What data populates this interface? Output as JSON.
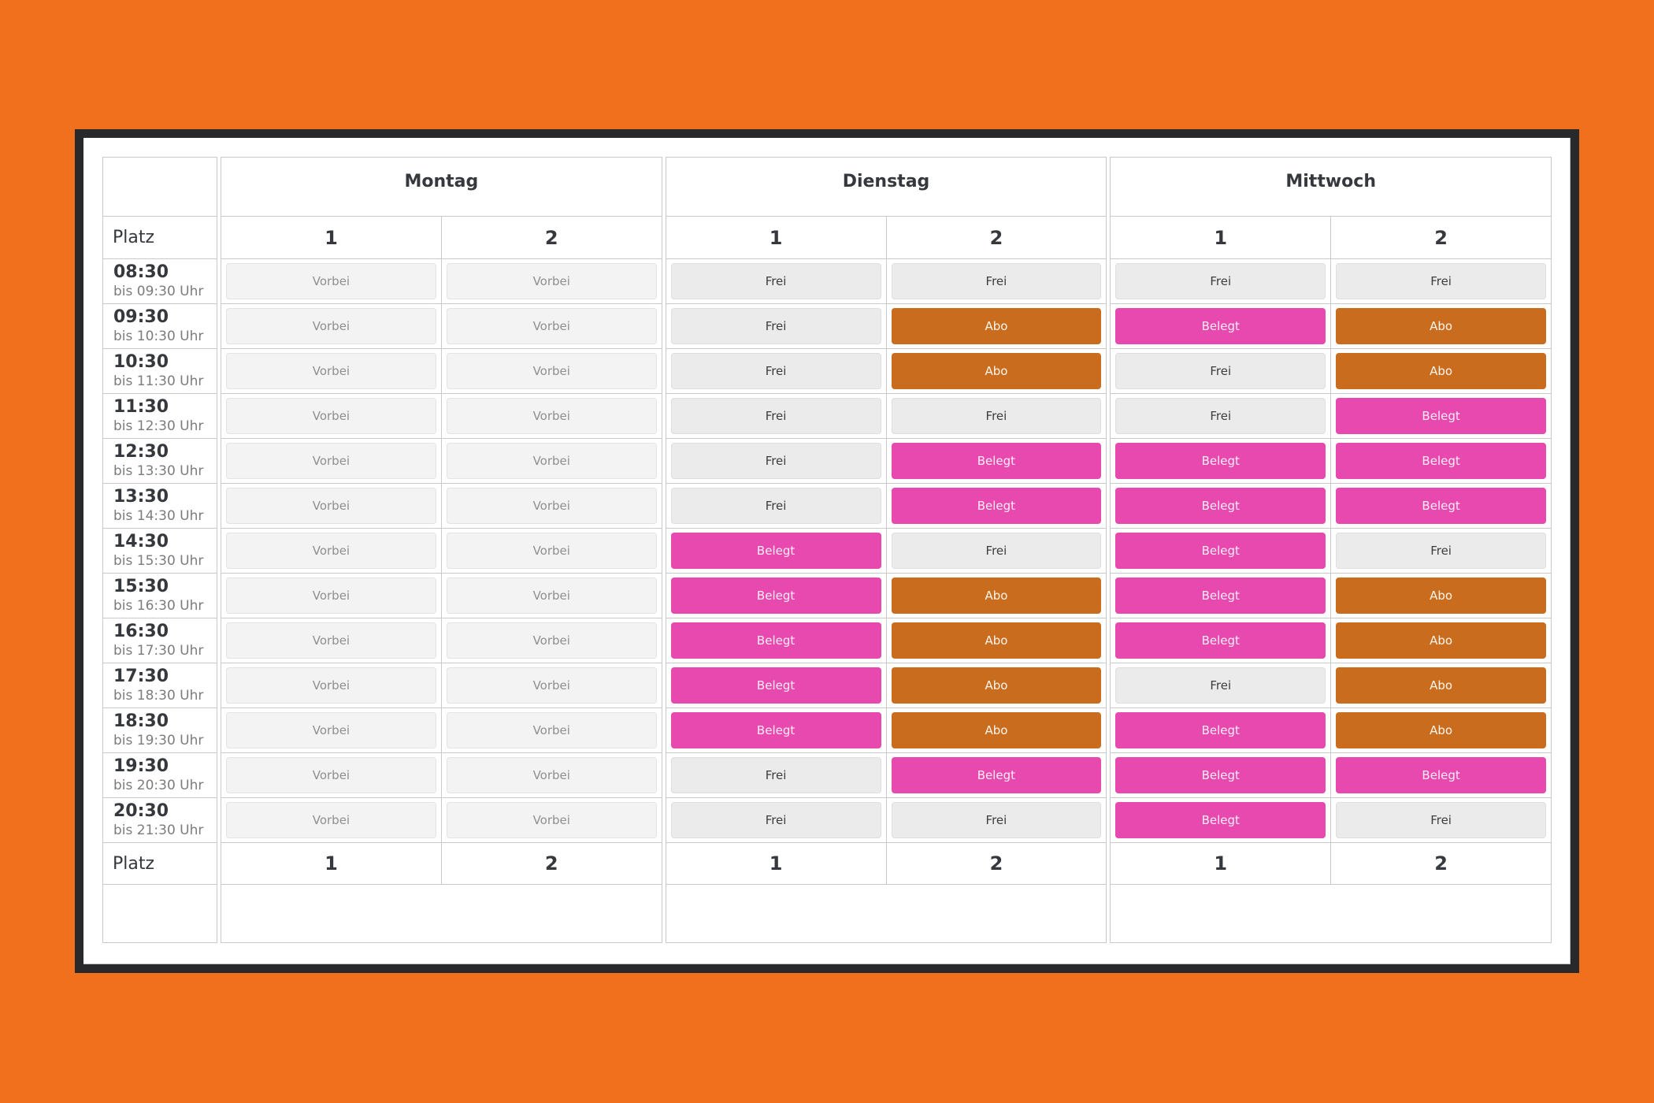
{
  "page": {
    "background_color": "#f1701e",
    "frame_color": "#27292b",
    "grid_border_color": "#c9c9c9"
  },
  "schedule": {
    "platz_label": "Platz",
    "time_slots": [
      {
        "time": "08:30",
        "range": "bis 09:30 Uhr"
      },
      {
        "time": "09:30",
        "range": "bis 10:30 Uhr"
      },
      {
        "time": "10:30",
        "range": "bis 11:30 Uhr"
      },
      {
        "time": "11:30",
        "range": "bis 12:30 Uhr"
      },
      {
        "time": "12:30",
        "range": "bis 13:30 Uhr"
      },
      {
        "time": "13:30",
        "range": "bis 14:30 Uhr"
      },
      {
        "time": "14:30",
        "range": "bis 15:30 Uhr"
      },
      {
        "time": "15:30",
        "range": "bis 16:30 Uhr"
      },
      {
        "time": "16:30",
        "range": "bis 17:30 Uhr"
      },
      {
        "time": "17:30",
        "range": "bis 18:30 Uhr"
      },
      {
        "time": "18:30",
        "range": "bis 19:30 Uhr"
      },
      {
        "time": "19:30",
        "range": "bis 20:30 Uhr"
      },
      {
        "time": "20:30",
        "range": "bis 21:30 Uhr"
      }
    ],
    "days": [
      {
        "name": "Montag",
        "courts": [
          {
            "number": "1",
            "slots": [
              "Vorbei",
              "Vorbei",
              "Vorbei",
              "Vorbei",
              "Vorbei",
              "Vorbei",
              "Vorbei",
              "Vorbei",
              "Vorbei",
              "Vorbei",
              "Vorbei",
              "Vorbei",
              "Vorbei"
            ]
          },
          {
            "number": "2",
            "slots": [
              "Vorbei",
              "Vorbei",
              "Vorbei",
              "Vorbei",
              "Vorbei",
              "Vorbei",
              "Vorbei",
              "Vorbei",
              "Vorbei",
              "Vorbei",
              "Vorbei",
              "Vorbei",
              "Vorbei"
            ]
          }
        ]
      },
      {
        "name": "Dienstag",
        "courts": [
          {
            "number": "1",
            "slots": [
              "Frei",
              "Frei",
              "Frei",
              "Frei",
              "Frei",
              "Frei",
              "Belegt",
              "Belegt",
              "Belegt",
              "Belegt",
              "Belegt",
              "Frei",
              "Frei"
            ]
          },
          {
            "number": "2",
            "slots": [
              "Frei",
              "Abo",
              "Abo",
              "Frei",
              "Belegt",
              "Belegt",
              "Frei",
              "Abo",
              "Abo",
              "Abo",
              "Abo",
              "Belegt",
              "Frei"
            ]
          }
        ]
      },
      {
        "name": "Mittwoch",
        "courts": [
          {
            "number": "1",
            "slots": [
              "Frei",
              "Belegt",
              "Frei",
              "Frei",
              "Belegt",
              "Belegt",
              "Belegt",
              "Belegt",
              "Belegt",
              "Frei",
              "Belegt",
              "Belegt",
              "Belegt"
            ]
          },
          {
            "number": "2",
            "slots": [
              "Frei",
              "Abo",
              "Abo",
              "Belegt",
              "Belegt",
              "Belegt",
              "Frei",
              "Abo",
              "Abo",
              "Abo",
              "Abo",
              "Belegt",
              "Frei"
            ]
          }
        ]
      }
    ],
    "status_styles": {
      "Vorbei": {
        "bg": "#f3f3f3",
        "text": "#8f8f8f"
      },
      "Frei": {
        "bg": "#ebebeb",
        "text": "#3d3d3d"
      },
      "Abo": {
        "bg": "#ca6c1e",
        "text": "#fdf6ee"
      },
      "Belegt": {
        "bg": "#e849ae",
        "text": "#fdedf8"
      }
    }
  }
}
